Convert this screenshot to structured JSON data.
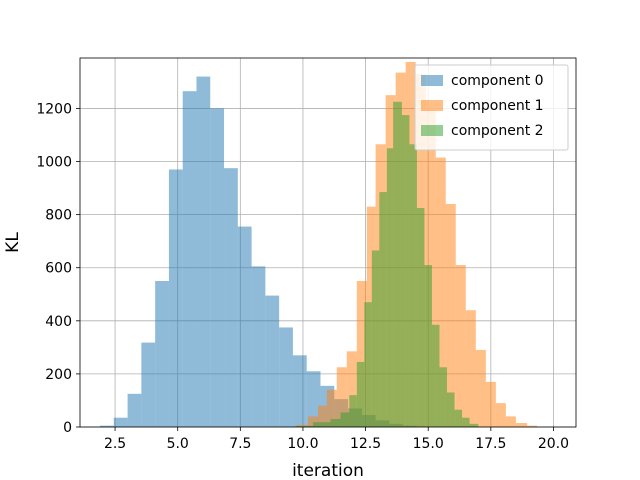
{
  "chart_data": {
    "type": "bar",
    "subtype": "histogram",
    "title": "",
    "xlabel": "iteration",
    "ylabel": "KL",
    "xlim": [
      1.1,
      20.9
    ],
    "ylim": [
      0,
      1390
    ],
    "xticks": [
      2.5,
      5.0,
      7.5,
      10.0,
      12.5,
      15.0,
      17.5,
      20.0
    ],
    "xtick_labels": [
      "2.5",
      "5.0",
      "7.5",
      "10.0",
      "12.5",
      "15.0",
      "17.5",
      "20.0"
    ],
    "yticks": [
      0,
      200,
      400,
      600,
      800,
      1000,
      1200
    ],
    "ytick_labels": [
      "0",
      "200",
      "400",
      "600",
      "800",
      "1000",
      "1200"
    ],
    "grid": true,
    "legend_position": "top-right",
    "series": [
      {
        "name": "component 0",
        "color": "#1f77b4",
        "alpha": 0.5,
        "bin_edges": [
          1.9,
          2.45,
          3.0,
          3.55,
          4.1,
          4.65,
          5.2,
          5.75,
          6.3,
          6.85,
          7.4,
          7.95,
          8.5,
          9.05,
          9.6,
          10.15,
          10.7,
          11.25,
          11.8,
          12.35,
          12.9,
          13.45,
          14.0,
          14.55,
          15.0
        ],
        "counts": [
          5,
          35,
          125,
          318,
          550,
          970,
          1265,
          1320,
          1200,
          975,
          755,
          605,
          495,
          375,
          270,
          210,
          155,
          105,
          70,
          45,
          25,
          12,
          5,
          2
        ]
      },
      {
        "name": "component 1",
        "color": "#ff7f0e",
        "alpha": 0.5,
        "bin_edges": [
          9.75,
          10.2,
          10.6,
          10.95,
          11.35,
          11.75,
          12.15,
          12.55,
          12.9,
          13.3,
          13.7,
          14.1,
          14.5,
          14.9,
          15.3,
          15.7,
          16.1,
          16.5,
          16.9,
          17.3,
          17.7,
          18.1,
          18.5,
          18.95,
          19.35
        ],
        "counts": [
          8,
          40,
          80,
          140,
          225,
          285,
          550,
          830,
          1065,
          1250,
          1335,
          1375,
          1330,
          1195,
          1015,
          840,
          610,
          440,
          290,
          170,
          90,
          40,
          15,
          5
        ]
      },
      {
        "name": "component 2",
        "color": "#2ca02c",
        "alpha": 0.5,
        "bin_edges": [
          9.7,
          10.4,
          11.1,
          11.5,
          11.85,
          12.15,
          12.45,
          12.75,
          13.05,
          13.35,
          13.6,
          13.95,
          14.25,
          14.55,
          14.85,
          15.15,
          15.45,
          15.75,
          16.05,
          16.35,
          16.65,
          17.0
        ],
        "counts": [
          4,
          18,
          30,
          55,
          120,
          245,
          470,
          665,
          885,
          1050,
          1225,
          1175,
          1065,
          825,
          610,
          385,
          225,
          130,
          65,
          35,
          12
        ]
      }
    ]
  }
}
